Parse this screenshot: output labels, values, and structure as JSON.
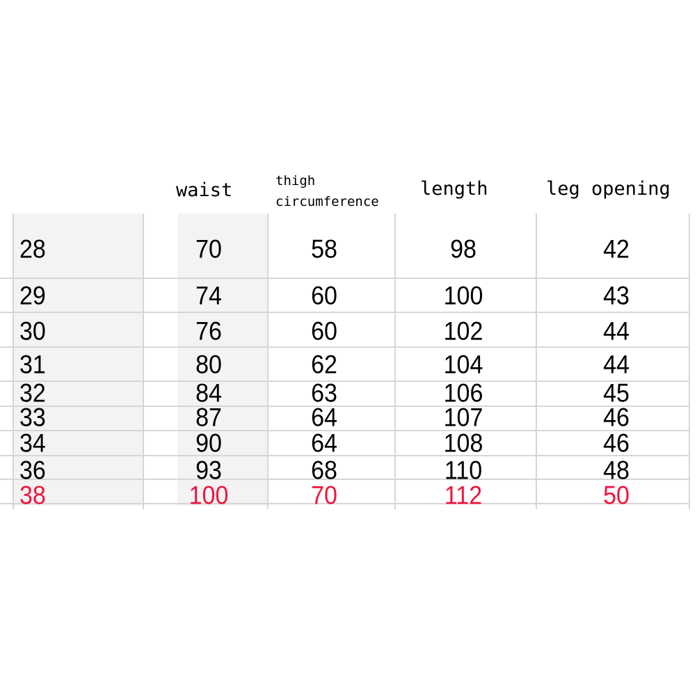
{
  "headers": {
    "waist": "waist",
    "thigh_line1": "thigh",
    "thigh_line2": "circumference",
    "length": "length",
    "leg_opening": "leg opening"
  },
  "highlight_color": "#f0143c",
  "rows": [
    {
      "size": "28",
      "waist": "70",
      "thigh": "58",
      "length": "98",
      "leg_opening": "42",
      "highlight": false
    },
    {
      "size": "29",
      "waist": "74",
      "thigh": "60",
      "length": "100",
      "leg_opening": "43",
      "highlight": false
    },
    {
      "size": "30",
      "waist": "76",
      "thigh": "60",
      "length": "102",
      "leg_opening": "44",
      "highlight": false
    },
    {
      "size": "31",
      "waist": "80",
      "thigh": "62",
      "length": "104",
      "leg_opening": "44",
      "highlight": false
    },
    {
      "size": "32",
      "waist": "84",
      "thigh": "63",
      "length": "106",
      "leg_opening": "45",
      "highlight": false
    },
    {
      "size": "33",
      "waist": "87",
      "thigh": "64",
      "length": "107",
      "leg_opening": "46",
      "highlight": false
    },
    {
      "size": "34",
      "waist": "90",
      "thigh": "64",
      "length": "108",
      "leg_opening": "46",
      "highlight": false
    },
    {
      "size": "36",
      "waist": "93",
      "thigh": "68",
      "length": "110",
      "leg_opening": "48",
      "highlight": false
    },
    {
      "size": "38",
      "waist": "100",
      "thigh": "70",
      "length": "112",
      "leg_opening": "50",
      "highlight": true
    }
  ]
}
